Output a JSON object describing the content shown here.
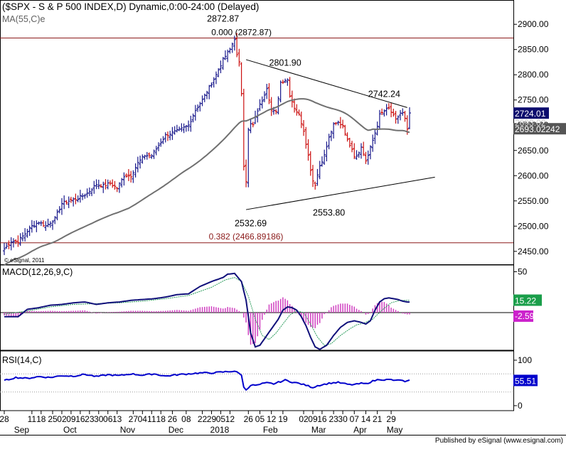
{
  "header": {
    "title": "($SPX - S & P 500 INDEX,D) Dynamic,0:00-24:00 (Delayed)",
    "ma_label": "MA(55,C)e",
    "copyright": "© eSignal, 2011"
  },
  "footer": {
    "credit": "Published by eSignal (www.esignal.com)"
  },
  "colors": {
    "up": "#1a1a8c",
    "down": "#cc1111",
    "ma": "#707070",
    "macd": "#10107a",
    "signal": "#2e9e5e",
    "hist": "#d040c0",
    "rsi": "#0000cc",
    "fib": "#8b1a1a",
    "grid": "#c8c8c8",
    "last_price_bg": "#0d0d6e",
    "ma_tag_bg": "#555555",
    "macd_tag_bg": "#1a9e4a",
    "hist_tag_bg": "#cc22cc",
    "rsi_tag_bg": "#0000cc"
  },
  "chart_data": [
    {
      "type": "candlestick",
      "title": "($SPX - S & P 500 INDEX,D) Dynamic,0:00-24:00 (Delayed)",
      "ylim": [
        2430,
        2920
      ],
      "y_ticks": [
        "2900.00",
        "2850.00",
        "2800.00",
        "2750.00",
        "2700.00",
        "2650.00",
        "2600.00",
        "2550.00",
        "2500.00",
        "2450.00"
      ],
      "last_price": "2724.01",
      "ma_value": "2693.02242",
      "ma_value_partial": "2693.02",
      "annotations": [
        {
          "text": "2872.87",
          "kind": "peak"
        },
        {
          "text": "2801.90",
          "kind": "peak"
        },
        {
          "text": "2742.24",
          "kind": "peak"
        },
        {
          "text": "2532.69",
          "kind": "trough"
        },
        {
          "text": "2553.80",
          "kind": "trough"
        }
      ],
      "fib_levels": [
        {
          "text": "0.000 (2872.87)",
          "value": 2872.87
        },
        {
          "text": "0.382 (2466.89186)",
          "value": 2466.89186
        }
      ],
      "trendlines": [
        {
          "name": "upper",
          "from": {
            "bar": 105,
            "y": 2830
          },
          "to": {
            "bar": 175,
            "y": 2735
          }
        },
        {
          "name": "lower",
          "from": {
            "bar": 105,
            "y": 2532.69
          },
          "to": {
            "bar": 187,
            "y": 2597
          }
        }
      ],
      "close_path": [
        [
          0,
          2455
        ],
        [
          3,
          2470
        ],
        [
          6,
          2470
        ],
        [
          9,
          2485
        ],
        [
          12,
          2500
        ],
        [
          15,
          2508
        ],
        [
          18,
          2500
        ],
        [
          22,
          2515
        ],
        [
          25,
          2545
        ],
        [
          28,
          2550
        ],
        [
          32,
          2555
        ],
        [
          36,
          2565
        ],
        [
          40,
          2583
        ],
        [
          43,
          2580
        ],
        [
          46,
          2585
        ],
        [
          49,
          2575
        ],
        [
          52,
          2600
        ],
        [
          55,
          2600
        ],
        [
          58,
          2625
        ],
        [
          61,
          2640
        ],
        [
          64,
          2640
        ],
        [
          67,
          2660
        ],
        [
          70,
          2680
        ],
        [
          73,
          2685
        ],
        [
          76,
          2690
        ],
        [
          80,
          2700
        ],
        [
          83,
          2730
        ],
        [
          86,
          2750
        ],
        [
          89,
          2775
        ],
        [
          92,
          2800
        ],
        [
          95,
          2830
        ],
        [
          98,
          2850
        ],
        [
          100,
          2872
        ],
        [
          101,
          2838
        ],
        [
          102,
          2823
        ],
        [
          103,
          2764
        ],
        [
          104,
          2621
        ],
        [
          105,
          2590
        ],
        [
          106,
          2690
        ],
        [
          107,
          2702
        ],
        [
          108,
          2700
        ],
        [
          110,
          2730
        ],
        [
          112,
          2750
        ],
        [
          114,
          2775
        ],
        [
          116,
          2730
        ],
        [
          118,
          2725
        ],
        [
          120,
          2785
        ],
        [
          122,
          2790
        ],
        [
          123,
          2790
        ],
        [
          124,
          2760
        ],
        [
          126,
          2735
        ],
        [
          128,
          2720
        ],
        [
          130,
          2690
        ],
        [
          132,
          2640
        ],
        [
          133,
          2613
        ],
        [
          134,
          2590
        ],
        [
          135,
          2583
        ],
        [
          137,
          2620
        ],
        [
          139,
          2640
        ],
        [
          141,
          2675
        ],
        [
          143,
          2700
        ],
        [
          145,
          2705
        ],
        [
          147,
          2700
        ],
        [
          149,
          2670
        ],
        [
          151,
          2655
        ],
        [
          152,
          2639
        ],
        [
          153,
          2640
        ],
        [
          155,
          2656
        ],
        [
          157,
          2630
        ],
        [
          158,
          2640
        ],
        [
          160,
          2670
        ],
        [
          162,
          2700
        ],
        [
          163,
          2720
        ],
        [
          165,
          2728
        ],
        [
          167,
          2733
        ],
        [
          168,
          2726
        ],
        [
          170,
          2710
        ],
        [
          172,
          2724
        ],
        [
          173,
          2724
        ],
        [
          174,
          2712
        ],
        [
          175,
          2690
        ],
        [
          176,
          2724
        ]
      ]
    },
    {
      "type": "line",
      "title": "MACD(12,26,9,C)",
      "y_ticks": [
        "50"
      ],
      "macd_value": "15.22",
      "hist_value": "-2.59",
      "macd_path": [
        [
          0,
          -5
        ],
        [
          6,
          -5
        ],
        [
          10,
          4
        ],
        [
          15,
          6
        ],
        [
          20,
          9
        ],
        [
          25,
          10
        ],
        [
          30,
          12
        ],
        [
          35,
          13
        ],
        [
          40,
          10
        ],
        [
          45,
          12
        ],
        [
          50,
          13
        ],
        [
          55,
          15
        ],
        [
          60,
          16
        ],
        [
          65,
          17
        ],
        [
          70,
          19
        ],
        [
          75,
          22
        ],
        [
          80,
          23
        ],
        [
          85,
          32
        ],
        [
          90,
          38
        ],
        [
          95,
          43
        ],
        [
          97,
          47
        ],
        [
          100,
          48
        ],
        [
          103,
          38
        ],
        [
          105,
          15
        ],
        [
          107,
          -25
        ],
        [
          109,
          -42
        ],
        [
          111,
          -40
        ],
        [
          113,
          -32
        ],
        [
          116,
          -20
        ],
        [
          119,
          -8
        ],
        [
          121,
          3
        ],
        [
          123,
          7
        ],
        [
          125,
          6
        ],
        [
          127,
          3
        ],
        [
          129,
          -5
        ],
        [
          131,
          -16
        ],
        [
          133,
          -30
        ],
        [
          135,
          -42
        ],
        [
          137,
          -45
        ],
        [
          140,
          -40
        ],
        [
          143,
          -28
        ],
        [
          146,
          -18
        ],
        [
          149,
          -12
        ],
        [
          152,
          -10
        ],
        [
          155,
          -12
        ],
        [
          157,
          -14
        ],
        [
          159,
          -10
        ],
        [
          161,
          3
        ],
        [
          163,
          13
        ],
        [
          165,
          17
        ],
        [
          167,
          18
        ],
        [
          169,
          17
        ],
        [
          171,
          16
        ],
        [
          173,
          14
        ],
        [
          175,
          13
        ]
      ],
      "signal_path": [
        [
          0,
          -2
        ],
        [
          10,
          2
        ],
        [
          20,
          7
        ],
        [
          30,
          10
        ],
        [
          40,
          11
        ],
        [
          50,
          12
        ],
        [
          60,
          14
        ],
        [
          70,
          17
        ],
        [
          80,
          21
        ],
        [
          90,
          31
        ],
        [
          96,
          40
        ],
        [
          100,
          43
        ],
        [
          103,
          38
        ],
        [
          106,
          20
        ],
        [
          109,
          -8
        ],
        [
          112,
          -28
        ],
        [
          115,
          -33
        ],
        [
          118,
          -25
        ],
        [
          121,
          -14
        ],
        [
          124,
          -3
        ],
        [
          127,
          2
        ],
        [
          130,
          0
        ],
        [
          133,
          -14
        ],
        [
          136,
          -30
        ],
        [
          139,
          -40
        ],
        [
          142,
          -38
        ],
        [
          146,
          -28
        ],
        [
          150,
          -20
        ],
        [
          153,
          -15
        ],
        [
          156,
          -13
        ],
        [
          160,
          -8
        ],
        [
          164,
          3
        ],
        [
          168,
          12
        ],
        [
          172,
          15
        ],
        [
          175,
          15
        ]
      ]
    },
    {
      "type": "line",
      "title": "RSI(14,C)",
      "ylim": [
        0,
        100
      ],
      "y_ticks": [
        "100",
        "0"
      ],
      "rsi_value": "55.51",
      "levels": [
        70,
        30
      ],
      "rsi_path": [
        [
          0,
          55
        ],
        [
          5,
          62
        ],
        [
          10,
          60
        ],
        [
          15,
          64
        ],
        [
          20,
          62
        ],
        [
          25,
          66
        ],
        [
          30,
          65
        ],
        [
          35,
          69
        ],
        [
          40,
          64
        ],
        [
          45,
          68
        ],
        [
          50,
          66
        ],
        [
          55,
          70
        ],
        [
          60,
          67
        ],
        [
          65,
          70
        ],
        [
          70,
          65
        ],
        [
          75,
          68
        ],
        [
          80,
          70
        ],
        [
          85,
          72
        ],
        [
          90,
          72
        ],
        [
          95,
          74
        ],
        [
          100,
          76
        ],
        [
          103,
          68
        ],
        [
          104,
          40
        ],
        [
          105,
          35
        ],
        [
          107,
          45
        ],
        [
          110,
          45
        ],
        [
          112,
          48
        ],
        [
          114,
          50
        ],
        [
          117,
          48
        ],
        [
          120,
          53
        ],
        [
          122,
          56
        ],
        [
          125,
          52
        ],
        [
          128,
          49
        ],
        [
          131,
          45
        ],
        [
          134,
          40
        ],
        [
          136,
          44
        ],
        [
          139,
          47
        ],
        [
          142,
          50
        ],
        [
          145,
          51
        ],
        [
          148,
          48
        ],
        [
          150,
          46
        ],
        [
          153,
          47
        ],
        [
          155,
          49
        ],
        [
          157,
          48
        ],
        [
          160,
          54
        ],
        [
          163,
          58
        ],
        [
          165,
          57
        ],
        [
          168,
          57
        ],
        [
          170,
          55
        ],
        [
          172,
          57
        ],
        [
          174,
          52
        ],
        [
          176,
          55
        ]
      ]
    }
  ],
  "x_axis": {
    "days": [
      "28",
      "11",
      "18",
      "25",
      "02",
      "09",
      "16",
      "23",
      "30",
      "06",
      "13",
      "27",
      "04",
      "11",
      "18",
      "26",
      "08",
      "22",
      "29",
      "05",
      "12",
      "26",
      "05",
      "12",
      "19",
      "02",
      "09",
      "16",
      "23",
      "30",
      "07",
      "14",
      "21",
      "29"
    ],
    "months": [
      "Sep",
      "Oct",
      "Nov",
      "Dec",
      "2018",
      "Feb",
      "Mar",
      "Apr",
      "May"
    ]
  }
}
